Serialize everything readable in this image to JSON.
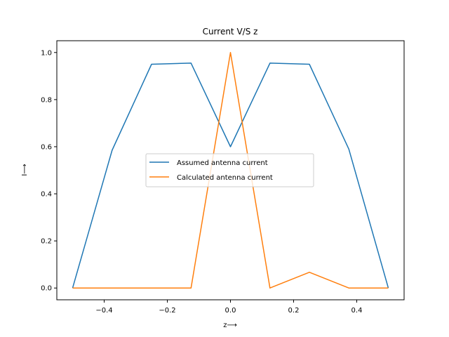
{
  "chart_data": {
    "type": "line",
    "title": "Current V/S z",
    "xlabel": "z⟶",
    "ylabel": "I⟶",
    "xlim": [
      -0.55,
      0.55
    ],
    "ylim": [
      -0.05,
      1.05
    ],
    "xticks": [
      -0.4,
      -0.2,
      0.0,
      0.2,
      0.4
    ],
    "xtick_labels": [
      "−0.4",
      "−0.2",
      "0.0",
      "0.2",
      "0.4"
    ],
    "yticks": [
      0.0,
      0.2,
      0.4,
      0.6,
      0.8,
      1.0
    ],
    "ytick_labels": [
      "0.0",
      "0.2",
      "0.4",
      "0.6",
      "0.8",
      "1.0"
    ],
    "grid": false,
    "legend_position": "center",
    "series": [
      {
        "name": "Assumed antenna current",
        "color": "#1f77b4",
        "x": [
          -0.5,
          -0.375,
          -0.25,
          -0.125,
          0.0,
          0.125,
          0.25,
          0.375,
          0.5
        ],
        "y": [
          0.0,
          0.585,
          0.95,
          0.955,
          0.6,
          0.955,
          0.95,
          0.59,
          0.0
        ]
      },
      {
        "name": "Calculated antenna current",
        "color": "#ff7f0e",
        "x": [
          -0.5,
          -0.375,
          -0.25,
          -0.125,
          0.0,
          0.125,
          0.25,
          0.375,
          0.5
        ],
        "y": [
          0.0,
          0.0,
          0.0,
          0.0,
          1.0,
          0.0,
          0.067,
          0.0,
          0.0
        ]
      }
    ]
  }
}
